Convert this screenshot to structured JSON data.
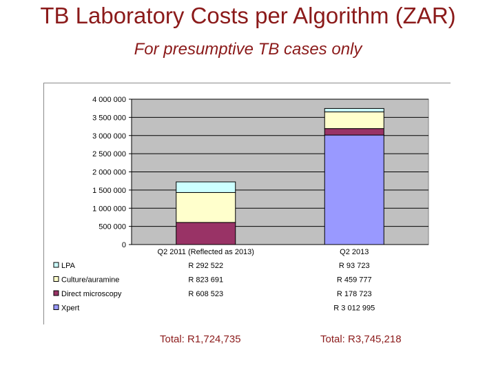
{
  "header": {
    "title": "TB Laboratory Costs per Algorithm (ZAR)",
    "subtitle": "For presumptive TB cases only"
  },
  "chart_data": {
    "type": "bar",
    "stacked": true,
    "categories": [
      "Q2 2011 (Reflected as 2013)",
      "Q2 2013"
    ],
    "series": [
      {
        "name": "Xpert",
        "values": [
          0,
          3012995
        ],
        "color": "#9999ff",
        "table_labels": [
          "",
          "R 3 012 995"
        ]
      },
      {
        "name": "Direct microscopy",
        "values": [
          608523,
          178723
        ],
        "color": "#993366",
        "table_labels": [
          "R 608 523",
          "R 178 723"
        ]
      },
      {
        "name": "Culture/auramine",
        "values": [
          823691,
          459777
        ],
        "color": "#ffffcc",
        "table_labels": [
          "R 823 691",
          "R 459 777"
        ]
      },
      {
        "name": "LPA",
        "values": [
          292522,
          93723
        ],
        "color": "#ccffff",
        "table_labels": [
          "R 292 522",
          "R 93 723"
        ]
      }
    ],
    "ylim": [
      0,
      4000000
    ],
    "yticks": [
      0,
      500000,
      1000000,
      1500000,
      2000000,
      2500000,
      3000000,
      3500000,
      4000000
    ],
    "ytick_labels": [
      "0",
      "500 000",
      "1 000 000",
      "1 500 000",
      "2 000 000",
      "2 500 000",
      "3 000 000",
      "3 500 000",
      "4 000 000"
    ],
    "legend_order": [
      "LPA",
      "Culture/auramine",
      "Direct microscopy",
      "Xpert"
    ],
    "legend_position": "left, data table below plot",
    "plot_background": "#c0c0c0",
    "grid": true
  },
  "totals": [
    "Total: R1,724,735",
    "Total: R3,745,218"
  ]
}
